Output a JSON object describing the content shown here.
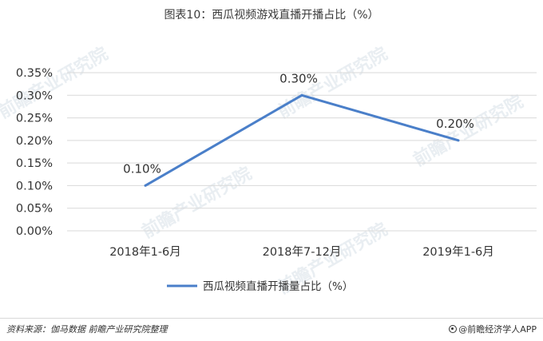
{
  "chart_data": {
    "type": "line",
    "title": "图表10：西瓜视频游戏直播开播占比（%）",
    "categories": [
      "2018年1-6月",
      "2018年7-12月",
      "2019年1-6月"
    ],
    "series": [
      {
        "name": "西瓜视频直播开播量占比（%）",
        "values": [
          0.1,
          0.3,
          0.2
        ],
        "labels": [
          "0.10%",
          "0.30%",
          "0.20%"
        ],
        "color": "#4a7fc9"
      }
    ],
    "yticks": [
      "0.00%",
      "0.05%",
      "0.10%",
      "0.15%",
      "0.20%",
      "0.25%",
      "0.30%",
      "0.35%"
    ],
    "ylim": [
      0,
      0.35
    ],
    "grid": true,
    "legend_position": "bottom"
  },
  "watermark": "前瞻产业研究院",
  "footer": {
    "source": "资料来源：伽马数据 前瞻产业研究院整理",
    "brand": "@前瞻经济学人APP"
  }
}
